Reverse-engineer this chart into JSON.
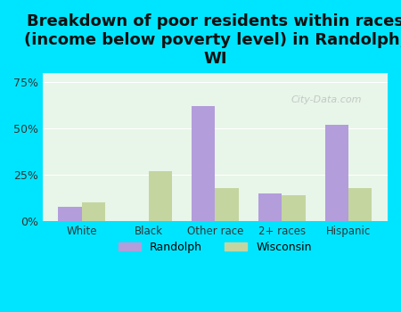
{
  "title": "Breakdown of poor residents within races\n(income below poverty level) in Randolph,\nWI",
  "categories": [
    "White",
    "Black",
    "Other race",
    "2+ races",
    "Hispanic"
  ],
  "randolph_values": [
    8,
    0,
    62,
    15,
    52
  ],
  "wisconsin_values": [
    10,
    27,
    18,
    14,
    18
  ],
  "randolph_color": "#b39ddb",
  "wisconsin_color": "#c5d5a0",
  "bg_color": "#00e5ff",
  "plot_bg_color_top": "#f5f5f5",
  "plot_bg_color_bottom": "#e8f5e9",
  "ylim": [
    0,
    80
  ],
  "yticks": [
    0,
    25,
    50,
    75
  ],
  "ytick_labels": [
    "0%",
    "25%",
    "50%",
    "75%"
  ],
  "bar_width": 0.35,
  "title_fontsize": 13,
  "legend_labels": [
    "Randolph",
    "Wisconsin"
  ],
  "watermark": "City-Data.com"
}
